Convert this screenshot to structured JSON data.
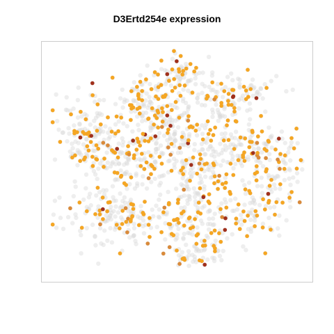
{
  "chart_data": {
    "type": "scatter",
    "title": "D3Ertd254e expression",
    "xlabel": "",
    "ylabel": "",
    "axes_visible": false,
    "grid": false,
    "legend": "none",
    "xlim": [
      0,
      100
    ],
    "ylim": [
      0,
      100
    ],
    "colors": {
      "background_cells": "#d9d9d9",
      "low": "#f5a623",
      "mid": "#d98a3a",
      "high": "#a0301c",
      "frame": "#cccccc"
    },
    "clusters": [
      {
        "cx": 51,
        "cy": 88,
        "sx": 5,
        "sy": 4,
        "n": 60
      },
      {
        "cx": 38,
        "cy": 79,
        "sx": 8,
        "sy": 5,
        "n": 110
      },
      {
        "cx": 70,
        "cy": 79,
        "sx": 9,
        "sy": 5,
        "n": 120
      },
      {
        "cx": 15,
        "cy": 63,
        "sx": 6,
        "sy": 9,
        "n": 120
      },
      {
        "cx": 47,
        "cy": 65,
        "sx": 8,
        "sy": 6,
        "n": 120
      },
      {
        "cx": 79,
        "cy": 55,
        "sx": 9,
        "sy": 7,
        "n": 150
      },
      {
        "cx": 30,
        "cy": 50,
        "sx": 11,
        "sy": 8,
        "n": 180
      },
      {
        "cx": 58,
        "cy": 48,
        "sx": 9,
        "sy": 7,
        "n": 140
      },
      {
        "cx": 27,
        "cy": 25,
        "sx": 10,
        "sy": 6,
        "n": 160
      },
      {
        "cx": 56,
        "cy": 24,
        "sx": 9,
        "sy": 7,
        "n": 150
      },
      {
        "cx": 84,
        "cy": 30,
        "sx": 6,
        "sy": 6,
        "n": 80
      },
      {
        "cx": 57,
        "cy": 9,
        "sx": 6,
        "sy": 3,
        "n": 50
      },
      {
        "cx": 93,
        "cy": 48,
        "sx": 3,
        "sy": 5,
        "n": 25
      }
    ],
    "expressing_fraction": 0.3,
    "high_fraction": 0.06,
    "mid_fraction": 0.08,
    "seed": 254
  }
}
